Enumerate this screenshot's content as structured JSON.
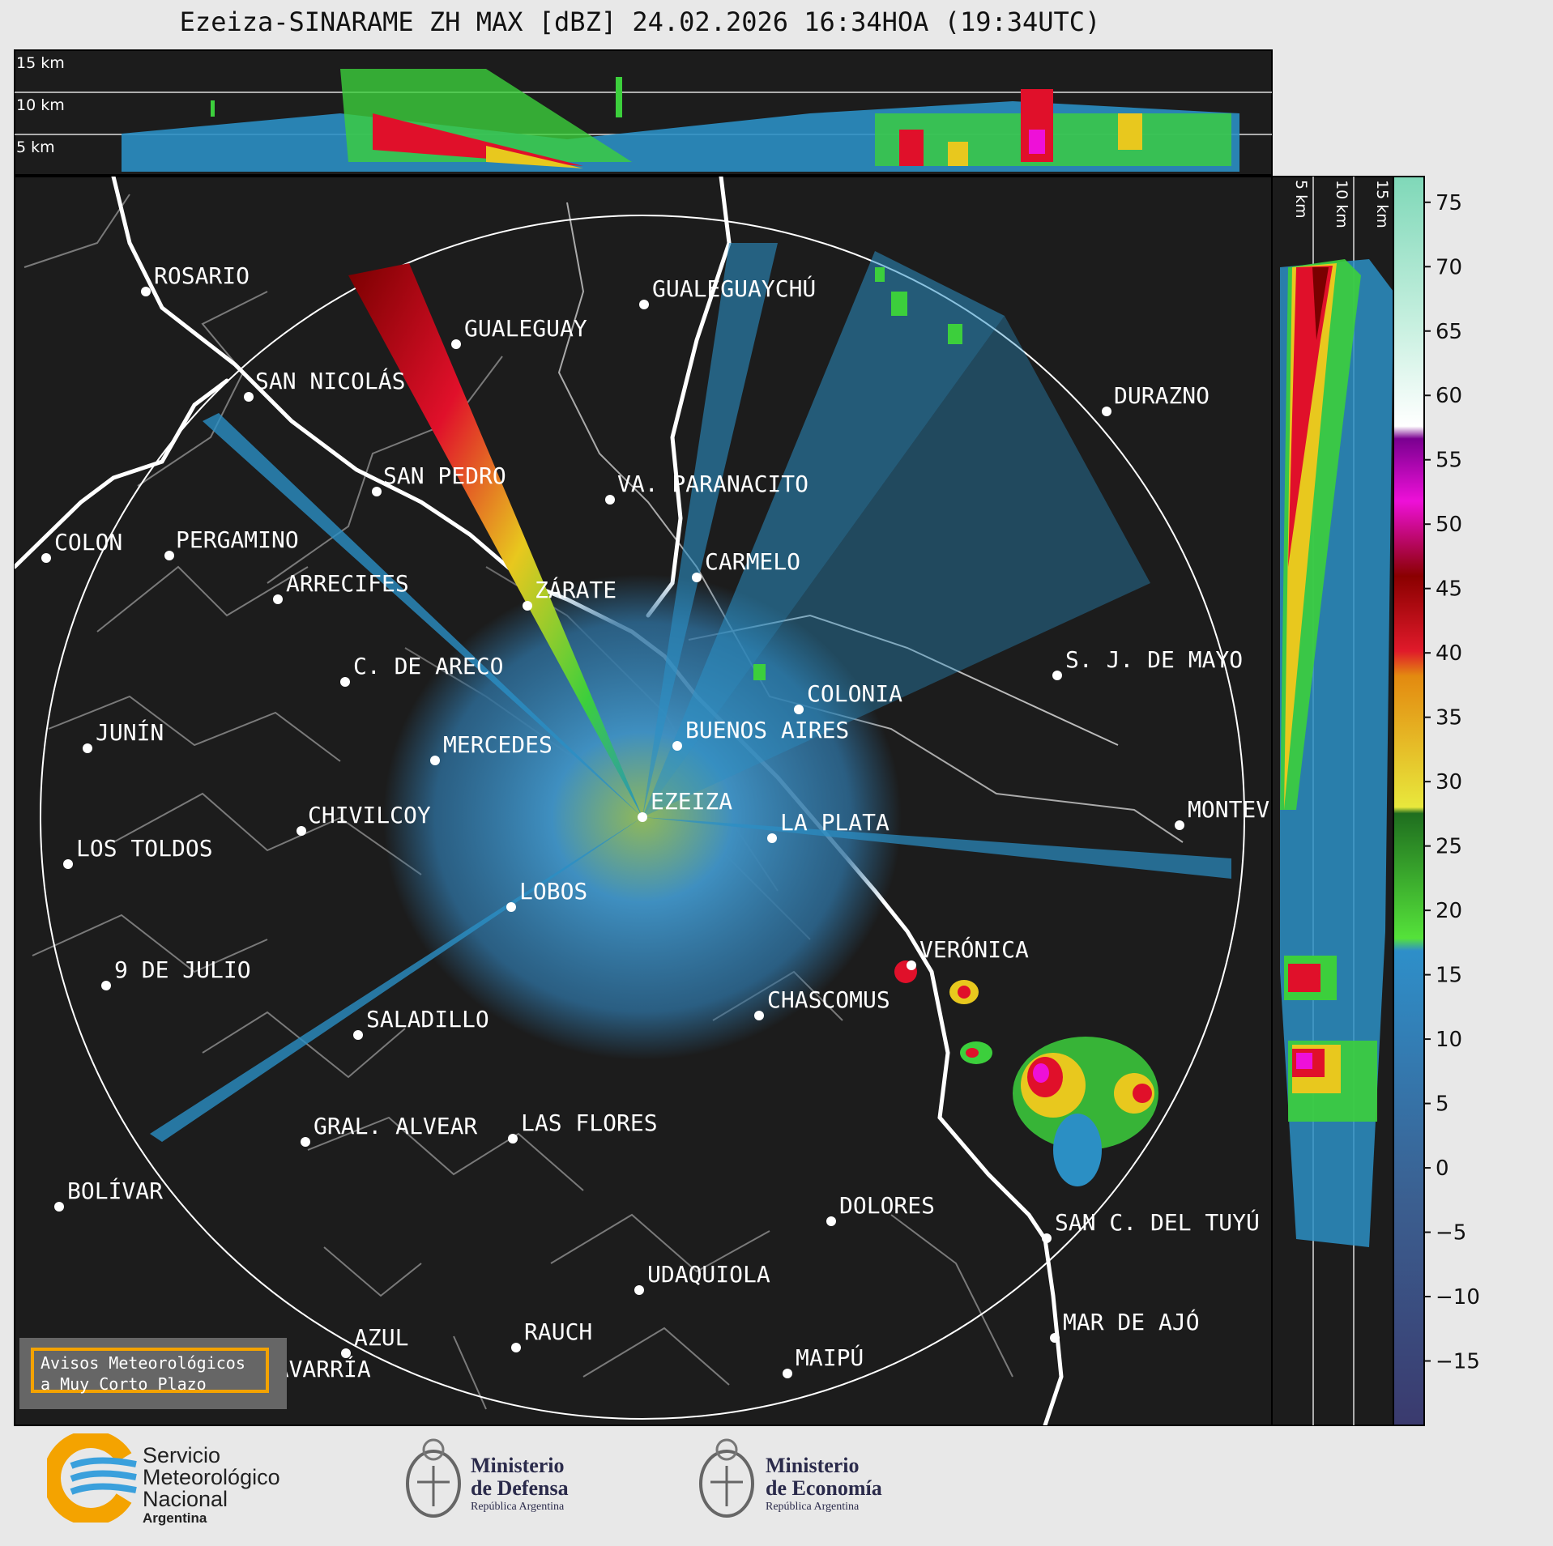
{
  "title": "Ezeiza-SINARAME ZH MAX [dBZ] 24.02.2026 16:34HOA (19:34UTC)",
  "top_panel": {
    "alt_labels": [
      "15 km",
      "10 km",
      "5 km"
    ]
  },
  "side_panel": {
    "alt_labels": [
      "5 km",
      "10 km",
      "15 km"
    ]
  },
  "colorbar": {
    "ticks": [
      "75",
      "70",
      "65",
      "60",
      "55",
      "50",
      "45",
      "40",
      "35",
      "30",
      "25",
      "20",
      "15",
      "10",
      "5",
      "0",
      "−5",
      "−10",
      "−15"
    ],
    "range_dbz": [
      -20,
      77
    ]
  },
  "cities": [
    {
      "name": "ROSARIO"
    },
    {
      "name": "GUALEGUAYCHÚ"
    },
    {
      "name": "GUALEGUAY"
    },
    {
      "name": "SAN NICOLÁS"
    },
    {
      "name": "DURAZNO"
    },
    {
      "name": "SAN PEDRO"
    },
    {
      "name": "VA. PARANACITO"
    },
    {
      "name": "COLON"
    },
    {
      "name": "PERGAMINO"
    },
    {
      "name": "CARMELO"
    },
    {
      "name": "ARRECIFES"
    },
    {
      "name": "ZÁRATE"
    },
    {
      "name": "S. J. DE MAYO"
    },
    {
      "name": "C. DE ARECO"
    },
    {
      "name": "COLONIA"
    },
    {
      "name": "JUNÍN"
    },
    {
      "name": "BUENOS AIRES"
    },
    {
      "name": "MERCEDES"
    },
    {
      "name": "EZEIZA"
    },
    {
      "name": "MONTEV"
    },
    {
      "name": "CHIVILCOY"
    },
    {
      "name": "LA PLATA"
    },
    {
      "name": "LOS TOLDOS"
    },
    {
      "name": "LOBOS"
    },
    {
      "name": "VERÓNICA"
    },
    {
      "name": "9 DE JULIO"
    },
    {
      "name": "CHASCOMUS"
    },
    {
      "name": "SALADILLO"
    },
    {
      "name": "GRAL. ALVEAR"
    },
    {
      "name": "LAS FLORES"
    },
    {
      "name": "BOLÍVAR"
    },
    {
      "name": "DOLORES"
    },
    {
      "name": "SAN C. DEL TUYÚ"
    },
    {
      "name": "UDAQUIOLA"
    },
    {
      "name": "AZUL"
    },
    {
      "name": "RAUCH"
    },
    {
      "name": "MAR DE AJÓ"
    },
    {
      "name": "MAIPÚ"
    },
    {
      "name": "OLAVARRÍA"
    }
  ],
  "warning_box": {
    "line1": "Avisos Meteorológicos",
    "line2": "a Muy Corto Plazo"
  },
  "footer": {
    "smn": {
      "line1": "Servicio",
      "line2": "Meteorológico",
      "line3": "Nacional",
      "line4": "Argentina"
    },
    "defensa": {
      "line1": "Ministerio",
      "line2": "de Defensa",
      "line3": "República Argentina"
    },
    "economia": {
      "line1": "Ministerio",
      "line2": "de Economía",
      "line3": "República Argentina"
    }
  },
  "colors": {
    "background": "#e8e8e8",
    "map_bg": "#1c1c1c",
    "coast": "#ffffff",
    "warning_border": "#f4a300"
  }
}
